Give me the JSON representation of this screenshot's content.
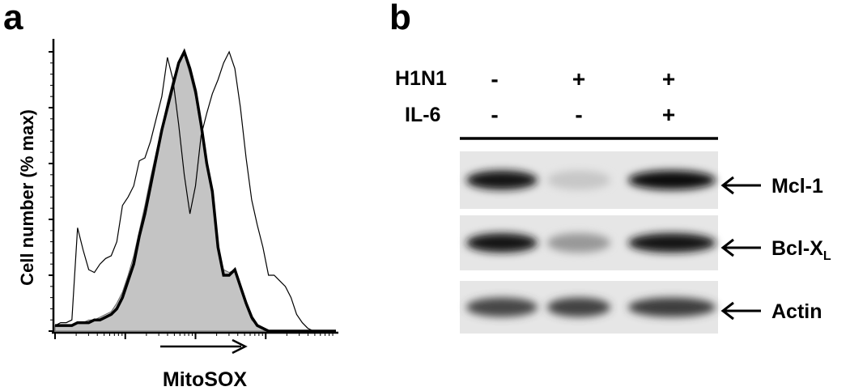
{
  "figure": {
    "panel_a": {
      "letter": "a",
      "ylabel": "Cell number (% max)",
      "xlabel": "MitoSOX"
    },
    "panel_b": {
      "letter": "b",
      "conditions": [
        {
          "name": "H1N1",
          "signs": [
            "-",
            "+",
            "+"
          ]
        },
        {
          "name": "IL-6",
          "signs": [
            "-",
            "-",
            "+"
          ]
        }
      ],
      "blots": [
        {
          "label": "Mcl-1",
          "sub": "",
          "intensities": [
            0.92,
            0.22,
            0.95
          ]
        },
        {
          "label": "Bcl-X",
          "sub": "L",
          "intensities": [
            0.9,
            0.4,
            0.92
          ]
        },
        {
          "label": "Actin",
          "sub": "",
          "intensities": [
            0.72,
            0.74,
            0.76
          ]
        }
      ]
    }
  },
  "chart_data": {
    "type": "area",
    "xlabel": "MitoSOX",
    "ylabel": "Cell number (% max)",
    "xscale": "log",
    "ylim": [
      0,
      100
    ],
    "series": [
      {
        "style": "thin line",
        "x": [
          0,
          2,
          4,
          6,
          8,
          10,
          12,
          14,
          16,
          18,
          20,
          22,
          24,
          26,
          28,
          30,
          32,
          34,
          36,
          38,
          40,
          42,
          44,
          46,
          48,
          50,
          52,
          54,
          56,
          58,
          60,
          62,
          64,
          66,
          68,
          70,
          72,
          74,
          76,
          78,
          80,
          82,
          84,
          86,
          88,
          90,
          92,
          94,
          96,
          98,
          100
        ],
        "y": [
          2,
          3,
          3,
          4,
          37,
          29,
          22,
          21,
          24,
          26,
          27,
          32,
          45,
          48,
          52,
          61,
          62,
          68,
          76,
          84,
          98,
          90,
          74,
          56,
          42,
          52,
          70,
          78,
          85,
          90,
          96,
          100,
          94,
          80,
          62,
          47,
          38,
          30,
          20,
          20,
          18,
          16,
          12,
          6,
          3,
          1,
          0,
          0,
          0,
          0,
          0
        ]
      },
      {
        "style": "thick line",
        "x": [
          0,
          2,
          4,
          6,
          8,
          10,
          12,
          14,
          16,
          18,
          20,
          22,
          24,
          26,
          28,
          30,
          32,
          34,
          36,
          38,
          40,
          42,
          44,
          46,
          48,
          50,
          52,
          54,
          56,
          58,
          60,
          62,
          64,
          66,
          68,
          70,
          72,
          74,
          76,
          78,
          80,
          82,
          84,
          86,
          88,
          90,
          92,
          94,
          96,
          98,
          100
        ],
        "y": [
          2,
          2,
          2,
          2,
          3,
          3,
          3,
          4,
          4,
          5,
          6,
          8,
          12,
          18,
          24,
          34,
          42,
          52,
          62,
          72,
          80,
          88,
          96,
          100,
          94,
          86,
          74,
          60,
          50,
          30,
          20,
          20,
          22,
          16,
          10,
          5,
          2,
          1,
          0,
          0,
          0,
          0,
          0,
          0,
          0,
          0,
          0,
          0,
          0,
          0,
          0
        ]
      },
      {
        "style": "filled grey",
        "x": [
          0,
          2,
          4,
          6,
          8,
          10,
          12,
          14,
          16,
          18,
          20,
          22,
          24,
          26,
          28,
          30,
          32,
          34,
          36,
          38,
          40,
          42,
          44,
          46,
          48,
          50,
          52,
          54,
          56,
          58,
          60,
          62,
          64,
          66,
          68,
          70,
          72,
          74,
          76,
          78,
          80,
          82,
          84,
          86,
          88,
          90,
          92,
          94,
          96,
          98,
          100
        ],
        "y": [
          2,
          2,
          2,
          2,
          3,
          3,
          4,
          4,
          5,
          6,
          7,
          10,
          14,
          20,
          27,
          36,
          45,
          55,
          64,
          73,
          82,
          90,
          96,
          99,
          92,
          84,
          72,
          60,
          48,
          30,
          22,
          21,
          22,
          15,
          9,
          4,
          2,
          1,
          0,
          0,
          0,
          0,
          0,
          0,
          0,
          0,
          0,
          0,
          0,
          0,
          0
        ]
      }
    ]
  }
}
